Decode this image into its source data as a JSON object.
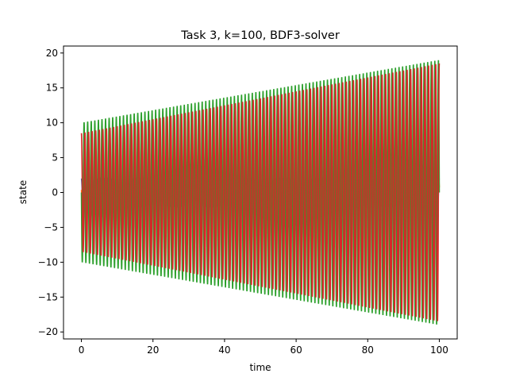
{
  "chart_data": {
    "type": "line",
    "title": "Task 3, k=100, BDF3-solver",
    "xlabel": "time",
    "ylabel": "state",
    "xlim": [
      -5,
      105
    ],
    "ylim": [
      -21,
      21
    ],
    "xticks": [
      0,
      20,
      40,
      60,
      80,
      100
    ],
    "yticks": [
      -20,
      -15,
      -10,
      -5,
      0,
      5,
      10,
      15,
      20
    ],
    "grid": false,
    "legend": "none",
    "t_range": [
      0,
      100
    ],
    "series": [
      {
        "color": "#1f77b4",
        "amplitude_start": 2,
        "amplitude_end": 2,
        "cycles": 110,
        "phase": 0.0
      },
      {
        "color": "#ff7f0e",
        "amplitude_start": 1,
        "amplitude_end": 2,
        "cycles": 110,
        "phase": 1.2
      },
      {
        "color": "#2ca02c",
        "amplitude_start": 10,
        "amplitude_end": 19,
        "cycles": 100,
        "phase": 1.5708
      },
      {
        "color": "#d62728",
        "amplitude_start": 8.5,
        "amplitude_end": 18.5,
        "cycles": 100,
        "phase": 0.0
      }
    ]
  }
}
